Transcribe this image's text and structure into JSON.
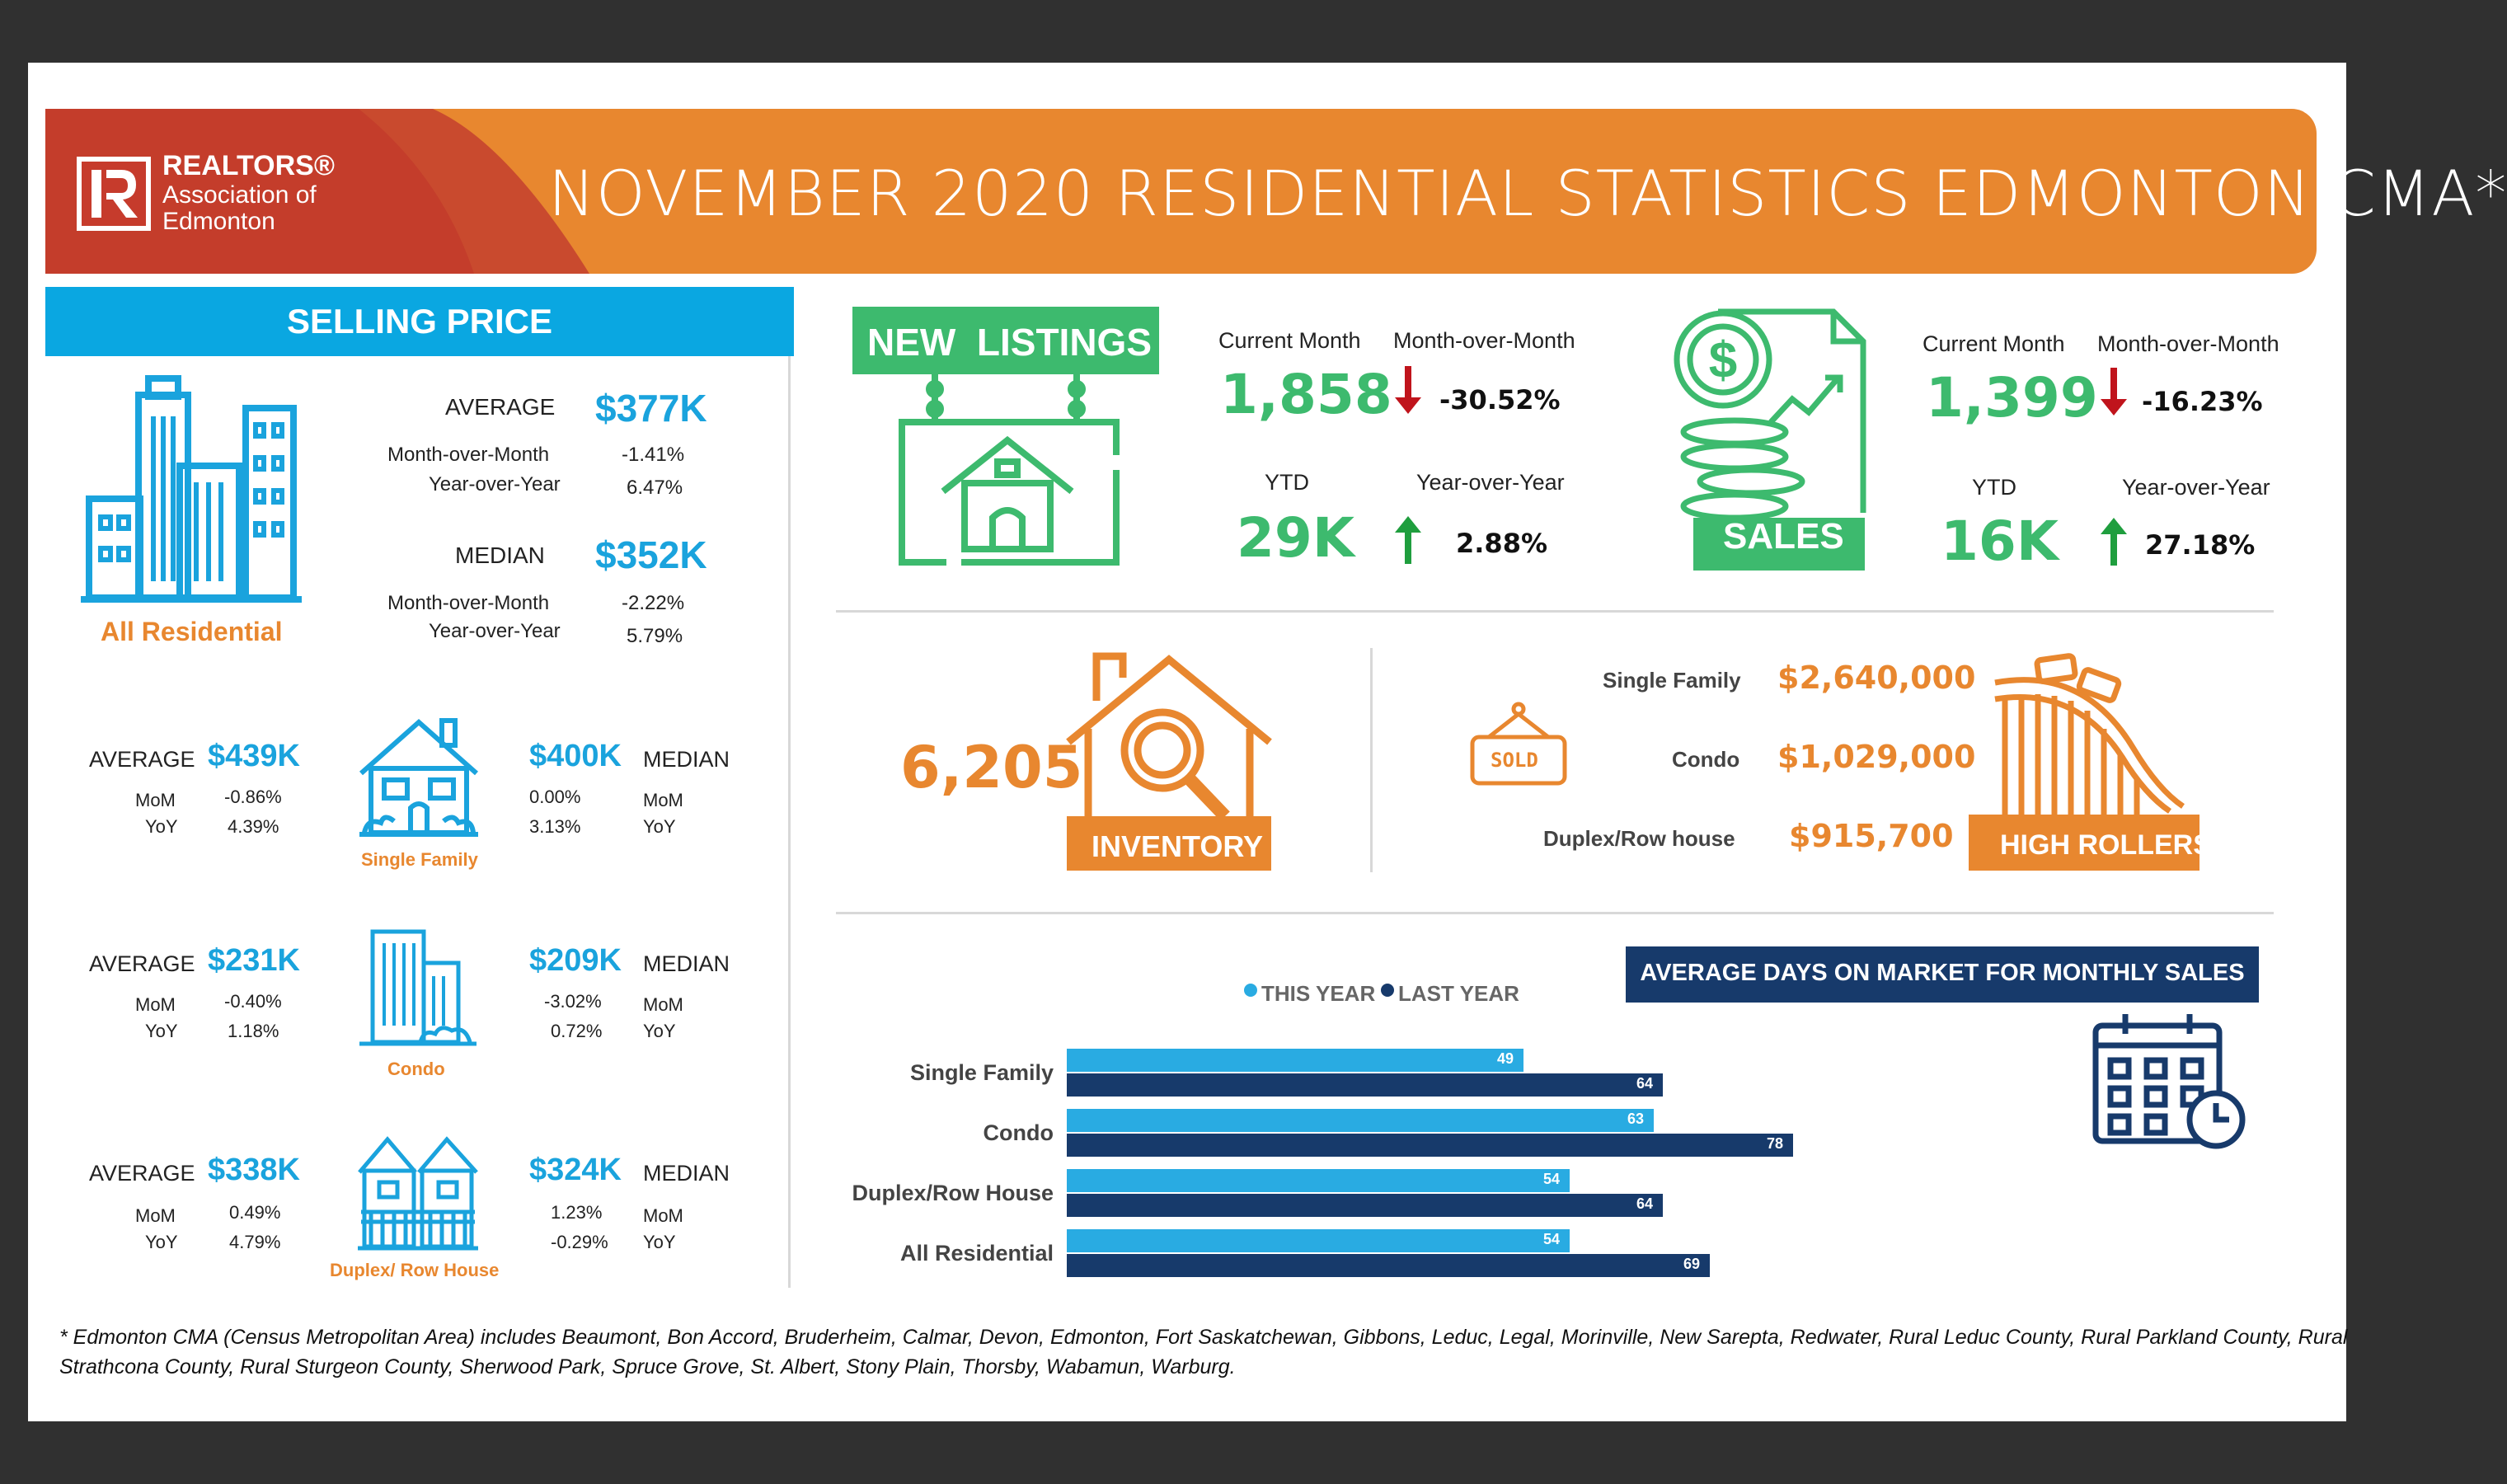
{
  "banner": {
    "title": "NOVEMBER 2020 RESIDENTIAL STATISTICS EDMONTON CMA*",
    "logo_line1": "REALTORS®",
    "logo_line2": "Association of",
    "logo_line3": "Edmonton"
  },
  "selling_price": {
    "header": "SELLING PRICE",
    "all_residential": {
      "label": "All Residential",
      "average_label": "AVERAGE",
      "average": "$377K",
      "avg_mom_label": "Month-over-Month",
      "avg_mom": "-1.41%",
      "avg_yoy_label": "Year-over-Year",
      "avg_yoy": "6.47%",
      "median_label": "MEDIAN",
      "median": "$352K",
      "med_mom_label": "Month-over-Month",
      "med_mom": "-2.22%",
      "med_yoy_label": "Year-over-Year",
      "med_yoy": "5.79%"
    },
    "types": [
      {
        "label": "Single Family",
        "average_label": "AVERAGE",
        "average": "$439K",
        "avg_mom": "-0.86%",
        "avg_yoy": "4.39%",
        "median_label": "MEDIAN",
        "median": "$400K",
        "med_mom": "0.00%",
        "med_yoy": "3.13%",
        "mom_label": "MoM",
        "yoy_label": "YoY"
      },
      {
        "label": "Condo",
        "average_label": "AVERAGE",
        "average": "$231K",
        "avg_mom": "-0.40%",
        "avg_yoy": "1.18%",
        "median_label": "MEDIAN",
        "median": "$209K",
        "med_mom": "-3.02%",
        "med_yoy": "0.72%",
        "mom_label": "MoM",
        "yoy_label": "YoY"
      },
      {
        "label": "Duplex/ Row House",
        "average_label": "AVERAGE",
        "average": "$338K",
        "avg_mom": "0.49%",
        "avg_yoy": "4.79%",
        "median_label": "MEDIAN",
        "median": "$324K",
        "med_mom": "1.23%",
        "med_yoy": "-0.29%",
        "mom_label": "MoM",
        "yoy_label": "YoY"
      }
    ]
  },
  "new_listings": {
    "label": "NEW  LISTINGS",
    "current_month_label": "Current Month",
    "current_month": "1,858",
    "mom_label": "Month-over-Month",
    "mom": "-30.52%",
    "ytd_label": "YTD",
    "ytd": "29K",
    "yoy_label": "Year-over-Year",
    "yoy": "2.88%"
  },
  "sales": {
    "label": "SALES",
    "current_month_label": "Current Month",
    "current_month": "1,399",
    "mom_label": "Month-over-Month",
    "mom": "-16.23%",
    "ytd_label": "YTD",
    "ytd": "16K",
    "yoy_label": "Year-over-Year",
    "yoy": "27.18%"
  },
  "inventory": {
    "value": "6,205",
    "label": "INVENTORY"
  },
  "high_rollers": {
    "label": "HIGH ROLLERS",
    "sold_sign": "SOLD",
    "items": [
      {
        "label": "Single Family",
        "value": "$2,640,000"
      },
      {
        "label": "Condo",
        "value": "$1,029,000"
      },
      {
        "label": "Duplex/Row house",
        "value": "$915,700"
      }
    ]
  },
  "days_on_market": {
    "header": "AVERAGE DAYS ON MARKET FOR MONTHLY SALES",
    "legend_this_year": "THIS YEAR",
    "legend_last_year": "LAST YEAR",
    "colors": {
      "this_year": "#29abe2",
      "last_year": "#173a6b"
    }
  },
  "chart_data": {
    "type": "bar",
    "orientation": "horizontal",
    "categories": [
      "Single Family",
      "Condo",
      "Duplex/Row House",
      "All Residential"
    ],
    "series": [
      {
        "name": "THIS YEAR",
        "values": [
          49,
          63,
          54,
          54
        ]
      },
      {
        "name": "LAST YEAR",
        "values": [
          64,
          78,
          64,
          69
        ]
      }
    ],
    "title": "AVERAGE DAYS ON MARKET FOR MONTHLY SALES",
    "legend": "top"
  },
  "footnote": {
    "line1": "* Edmonton CMA (Census Metropolitan Area) includes Beaumont, Bon Accord, Bruderheim, Calmar, Devon, Edmonton, Fort Saskatchewan, Gibbons, Leduc, Legal, Morinville, New Sarepta, Redwater, Rural Leduc County, Rural Parkland County, Rural",
    "line2": "Strathcona County, Rural Sturgeon County, Sherwood Park, Spruce Grove, St. Albert, Stony Plain, Thorsby, Wabamun, Warburg."
  }
}
